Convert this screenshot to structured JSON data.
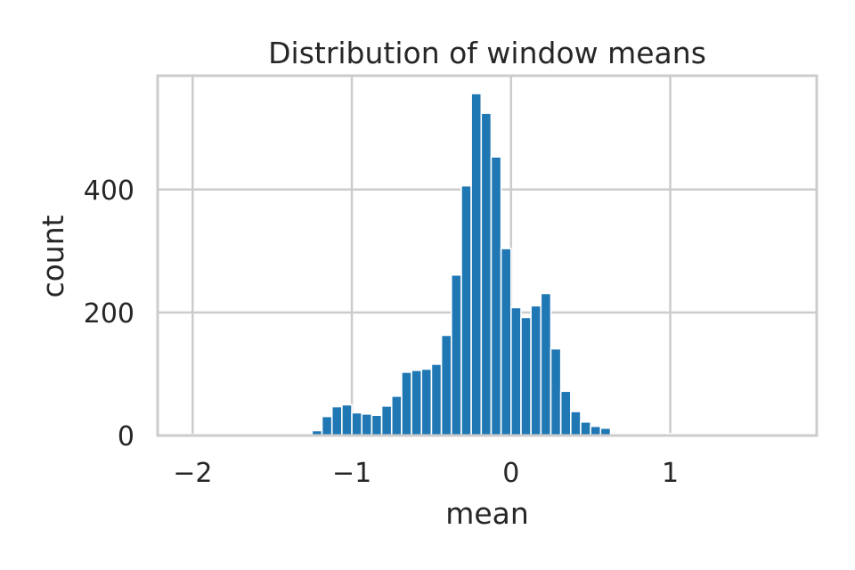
{
  "chart_data": {
    "type": "bar",
    "title": "Distribution of window means",
    "xlabel": "mean",
    "ylabel": "count",
    "xlim": [
      -2.22,
      1.92
    ],
    "ylim": [
      0,
      585
    ],
    "xticks": [
      -2,
      -1,
      0,
      1
    ],
    "xtick_labels": [
      "−2",
      "−1",
      "0",
      "1"
    ],
    "yticks": [
      0,
      200,
      400
    ],
    "ytick_labels": [
      "0",
      "200",
      "400"
    ],
    "grid": true,
    "bar_color": "#1f77b4",
    "bins": [
      {
        "x0": -2.0,
        "x1": -1.9375,
        "count": 2
      },
      {
        "x0": -1.9375,
        "x1": -1.875,
        "count": 2
      },
      {
        "x0": -1.875,
        "x1": -1.8125,
        "count": 2
      },
      {
        "x0": -1.8125,
        "x1": -1.75,
        "count": 2
      },
      {
        "x0": -1.75,
        "x1": -1.6875,
        "count": 2
      },
      {
        "x0": -1.6875,
        "x1": -1.625,
        "count": 2
      },
      {
        "x0": -1.625,
        "x1": -1.5625,
        "count": 2
      },
      {
        "x0": -1.5625,
        "x1": -1.5,
        "count": 2
      },
      {
        "x0": -1.5,
        "x1": -1.4375,
        "count": 2
      },
      {
        "x0": -1.4375,
        "x1": -1.375,
        "count": 2
      },
      {
        "x0": -1.375,
        "x1": -1.3125,
        "count": 2
      },
      {
        "x0": -1.3125,
        "x1": -1.25,
        "count": 2
      },
      {
        "x0": -1.25,
        "x1": -1.1875,
        "count": 8
      },
      {
        "x0": -1.1875,
        "x1": -1.125,
        "count": 31
      },
      {
        "x0": -1.125,
        "x1": -1.0625,
        "count": 47
      },
      {
        "x0": -1.0625,
        "x1": -1.0,
        "count": 50
      },
      {
        "x0": -1.0,
        "x1": -0.9375,
        "count": 37
      },
      {
        "x0": -0.9375,
        "x1": -0.875,
        "count": 35
      },
      {
        "x0": -0.875,
        "x1": -0.8125,
        "count": 33
      },
      {
        "x0": -0.8125,
        "x1": -0.75,
        "count": 48
      },
      {
        "x0": -0.75,
        "x1": -0.6875,
        "count": 64
      },
      {
        "x0": -0.6875,
        "x1": -0.625,
        "count": 103
      },
      {
        "x0": -0.625,
        "x1": -0.5625,
        "count": 106
      },
      {
        "x0": -0.5625,
        "x1": -0.5,
        "count": 108
      },
      {
        "x0": -0.5,
        "x1": -0.4375,
        "count": 116
      },
      {
        "x0": -0.4375,
        "x1": -0.375,
        "count": 163
      },
      {
        "x0": -0.375,
        "x1": -0.3125,
        "count": 261
      },
      {
        "x0": -0.3125,
        "x1": -0.25,
        "count": 406
      },
      {
        "x0": -0.25,
        "x1": -0.1875,
        "count": 556
      },
      {
        "x0": -0.1875,
        "x1": -0.125,
        "count": 524
      },
      {
        "x0": -0.125,
        "x1": -0.0625,
        "count": 453
      },
      {
        "x0": -0.0625,
        "x1": 0.0,
        "count": 304
      },
      {
        "x0": 0.0,
        "x1": 0.0625,
        "count": 208
      },
      {
        "x0": 0.0625,
        "x1": 0.125,
        "count": 192
      },
      {
        "x0": 0.125,
        "x1": 0.1875,
        "count": 211
      },
      {
        "x0": 0.1875,
        "x1": 0.25,
        "count": 231
      },
      {
        "x0": 0.25,
        "x1": 0.3125,
        "count": 141
      },
      {
        "x0": 0.3125,
        "x1": 0.375,
        "count": 72
      },
      {
        "x0": 0.375,
        "x1": 0.4375,
        "count": 39
      },
      {
        "x0": 0.4375,
        "x1": 0.5,
        "count": 22
      },
      {
        "x0": 0.5,
        "x1": 0.5625,
        "count": 15
      },
      {
        "x0": 0.5625,
        "x1": 0.625,
        "count": 12
      },
      {
        "x0": 0.625,
        "x1": 0.6875,
        "count": 3
      },
      {
        "x0": 0.6875,
        "x1": 0.75,
        "count": 3
      },
      {
        "x0": 0.75,
        "x1": 0.8125,
        "count": 3
      },
      {
        "x0": 0.8125,
        "x1": 0.875,
        "count": 3
      },
      {
        "x0": 0.875,
        "x1": 0.9375,
        "count": 3
      },
      {
        "x0": 0.9375,
        "x1": 1.0,
        "count": 3
      },
      {
        "x0": 1.0,
        "x1": 1.0625,
        "count": 3
      },
      {
        "x0": 1.0625,
        "x1": 1.125,
        "count": 3
      },
      {
        "x0": 1.125,
        "x1": 1.1875,
        "count": 3
      },
      {
        "x0": 1.1875,
        "x1": 1.25,
        "count": 3
      },
      {
        "x0": 1.25,
        "x1": 1.3125,
        "count": 3
      },
      {
        "x0": 1.3125,
        "x1": 1.375,
        "count": 3
      },
      {
        "x0": 1.375,
        "x1": 1.4375,
        "count": 3
      },
      {
        "x0": 1.4375,
        "x1": 1.5,
        "count": 3
      },
      {
        "x0": 1.5,
        "x1": 1.5625,
        "count": 3
      },
      {
        "x0": 1.5625,
        "x1": 1.625,
        "count": 3
      },
      {
        "x0": 1.625,
        "x1": 1.6875,
        "count": 3
      },
      {
        "x0": 1.6875,
        "x1": 1.75,
        "count": 3
      }
    ]
  }
}
